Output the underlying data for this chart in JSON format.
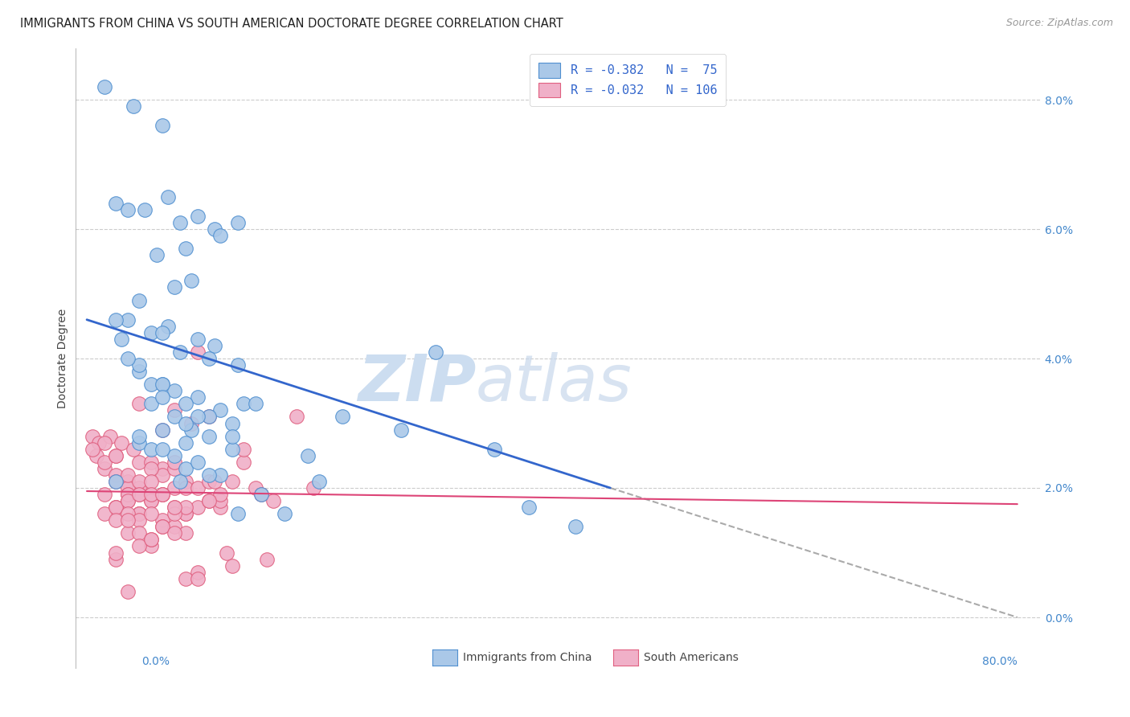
{
  "title": "IMMIGRANTS FROM CHINA VS SOUTH AMERICAN DOCTORATE DEGREE CORRELATION CHART",
  "source": "Source: ZipAtlas.com",
  "ylabel": "Doctorate Degree",
  "yticks": [
    0.0,
    2.0,
    4.0,
    6.0,
    8.0
  ],
  "ylim": [
    -0.8,
    8.8
  ],
  "xlim": [
    -1.0,
    82.0
  ],
  "xtick_labels_bottom": [
    "0.0%",
    "80.0%"
  ],
  "ytick_labels": [
    "0.0%",
    "2.0%",
    "4.0%",
    "6.0%",
    "8.0%"
  ],
  "legend_line1": "R = -0.382   N =  75",
  "legend_line2": "R = -0.032   N = 106",
  "legend_label_china": "Immigrants from China",
  "legend_label_sa": "South Americans",
  "color_china_fill": "#aac8e8",
  "color_china_edge": "#5090d0",
  "color_sa_fill": "#f0b0c8",
  "color_sa_edge": "#e06080",
  "color_line_china": "#3366cc",
  "color_line_sa": "#dd4477",
  "color_line_dash": "#aaaaaa",
  "watermark_color": "#ccddf0",
  "background_color": "#ffffff",
  "title_fontsize": 10.5,
  "china_x": [
    1.5,
    4.0,
    6.5,
    2.5,
    5.0,
    8.0,
    7.0,
    3.5,
    9.5,
    11.0,
    13.0,
    6.0,
    8.5,
    11.5,
    9.0,
    7.5,
    4.5,
    3.0,
    5.5,
    3.5,
    7.0,
    9.5,
    6.5,
    11.0,
    8.0,
    10.5,
    4.5,
    2.5,
    13.0,
    6.5,
    5.5,
    7.5,
    9.5,
    8.5,
    11.5,
    10.5,
    12.5,
    4.5,
    3.5,
    6.5,
    7.5,
    5.5,
    9.0,
    8.5,
    13.5,
    6.5,
    10.5,
    12.5,
    4.5,
    7.5,
    5.5,
    2.5,
    8.5,
    11.5,
    9.5,
    6.5,
    14.5,
    8.0,
    10.5,
    4.5,
    6.5,
    8.5,
    9.5,
    12.5,
    30.0,
    20.0,
    17.0,
    13.0,
    15.0,
    42.0,
    27.0,
    38.0,
    22.0,
    35.0,
    19.0
  ],
  "china_y": [
    8.2,
    7.9,
    7.6,
    6.4,
    6.3,
    6.1,
    6.5,
    6.3,
    6.2,
    6.0,
    6.1,
    5.6,
    5.7,
    5.9,
    5.2,
    5.1,
    4.9,
    4.3,
    4.4,
    4.6,
    4.5,
    4.3,
    4.4,
    4.2,
    4.1,
    4.0,
    3.8,
    4.6,
    3.9,
    3.6,
    3.6,
    3.5,
    3.4,
    3.3,
    3.2,
    3.1,
    3.0,
    3.9,
    4.0,
    3.6,
    3.1,
    3.3,
    2.9,
    3.0,
    3.3,
    2.9,
    2.8,
    2.6,
    2.7,
    2.5,
    2.6,
    2.1,
    2.3,
    2.2,
    2.4,
    2.6,
    3.3,
    2.1,
    2.2,
    2.8,
    3.4,
    2.7,
    3.1,
    2.8,
    4.1,
    2.1,
    1.6,
    1.6,
    1.9,
    1.4,
    2.9,
    1.7,
    3.1,
    2.6,
    2.5
  ],
  "sa_x": [
    0.5,
    1.0,
    2.0,
    3.0,
    4.0,
    1.5,
    0.8,
    2.5,
    3.5,
    1.5,
    4.5,
    2.5,
    5.5,
    3.5,
    1.5,
    0.5,
    2.5,
    4.5,
    6.5,
    3.5,
    1.5,
    5.5,
    2.5,
    7.5,
    4.5,
    3.5,
    2.5,
    1.5,
    6.5,
    4.5,
    8.5,
    3.5,
    5.5,
    2.5,
    4.5,
    6.5,
    7.5,
    3.5,
    5.5,
    2.5,
    4.5,
    8.5,
    6.5,
    3.5,
    9.5,
    4.5,
    7.5,
    5.5,
    2.5,
    6.5,
    11.5,
    8.5,
    4.5,
    10.5,
    7.5,
    3.5,
    5.5,
    9.5,
    6.5,
    12.5,
    8.5,
    4.5,
    7.5,
    3.5,
    10.5,
    5.5,
    14.5,
    6.5,
    11.5,
    8.5,
    7.5,
    4.5,
    19.5,
    5.5,
    9.5,
    15.0,
    12.0,
    11.0,
    13.5,
    16.0,
    8.5,
    5.5,
    2.5,
    9.5,
    6.5,
    4.5,
    7.5,
    10.5,
    13.5,
    9.0,
    18.0,
    3.5,
    5.5,
    7.5,
    11.5,
    8.5,
    6.5,
    10.5,
    4.5,
    2.5,
    15.5,
    12.5,
    7.5,
    5.5,
    9.5,
    3.5
  ],
  "sa_y": [
    2.8,
    2.7,
    2.8,
    2.7,
    2.6,
    2.3,
    2.5,
    2.2,
    2.1,
    2.4,
    2.0,
    2.1,
    1.9,
    2.0,
    2.7,
    2.6,
    2.5,
    2.4,
    2.3,
    2.2,
    1.9,
    1.8,
    1.7,
    2.0,
    1.9,
    1.8,
    1.7,
    1.6,
    1.5,
    1.6,
    2.1,
    1.9,
    1.8,
    1.7,
    1.6,
    2.2,
    2.3,
    1.9,
    2.4,
    2.5,
    2.1,
    2.0,
    1.9,
    1.8,
    1.7,
    1.6,
    2.4,
    2.3,
    1.5,
    1.4,
    1.7,
    1.6,
    1.9,
    1.8,
    1.7,
    1.6,
    2.1,
    2.0,
    1.9,
    2.1,
    1.6,
    1.5,
    1.4,
    1.3,
    2.1,
    1.9,
    2.0,
    1.9,
    1.8,
    1.7,
    1.6,
    1.3,
    2.0,
    1.1,
    0.7,
    1.9,
    1.0,
    2.1,
    2.4,
    1.8,
    0.6,
    1.2,
    0.9,
    4.1,
    2.9,
    3.3,
    3.2,
    3.1,
    2.6,
    3.0,
    3.1,
    1.5,
    1.6,
    1.7,
    1.9,
    1.3,
    1.4,
    1.8,
    1.1,
    1.0,
    0.9,
    0.8,
    1.3,
    1.2,
    0.6,
    0.4
  ],
  "china_line_x0": 0.0,
  "china_line_y0": 4.6,
  "china_line_x1": 45.0,
  "china_line_y1": 2.0,
  "china_dash_x0": 45.0,
  "china_dash_y0": 2.0,
  "china_dash_x1": 80.0,
  "china_dash_y1": 0.0,
  "sa_line_x0": 0.0,
  "sa_line_y0": 1.95,
  "sa_line_x1": 80.0,
  "sa_line_y1": 1.75
}
